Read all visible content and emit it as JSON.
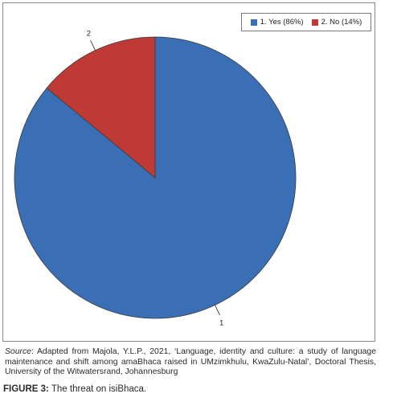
{
  "chart_data": {
    "type": "pie",
    "slices": [
      {
        "label": "1",
        "legend": "1. Yes (86%)",
        "value": 86,
        "color": "#3A6FB6"
      },
      {
        "label": "2",
        "legend": "2. No (14%)",
        "value": 14,
        "color": "#C03A35"
      }
    ],
    "legend_position": "top-right"
  },
  "source": {
    "prefix": "Source",
    "text": ": Adapted from Majola, Y.L.P., 2021, ‘Language, identity and culture: a study of language maintenance and shift among amaBhaca raised in UMzimkhulu, KwaZulu-Natal’, Doctoral Thesis, University of the Witwatersrand, Johannesburg"
  },
  "caption": {
    "label": "FIGURE 3:",
    "text": " The threat on isiBhaca."
  }
}
